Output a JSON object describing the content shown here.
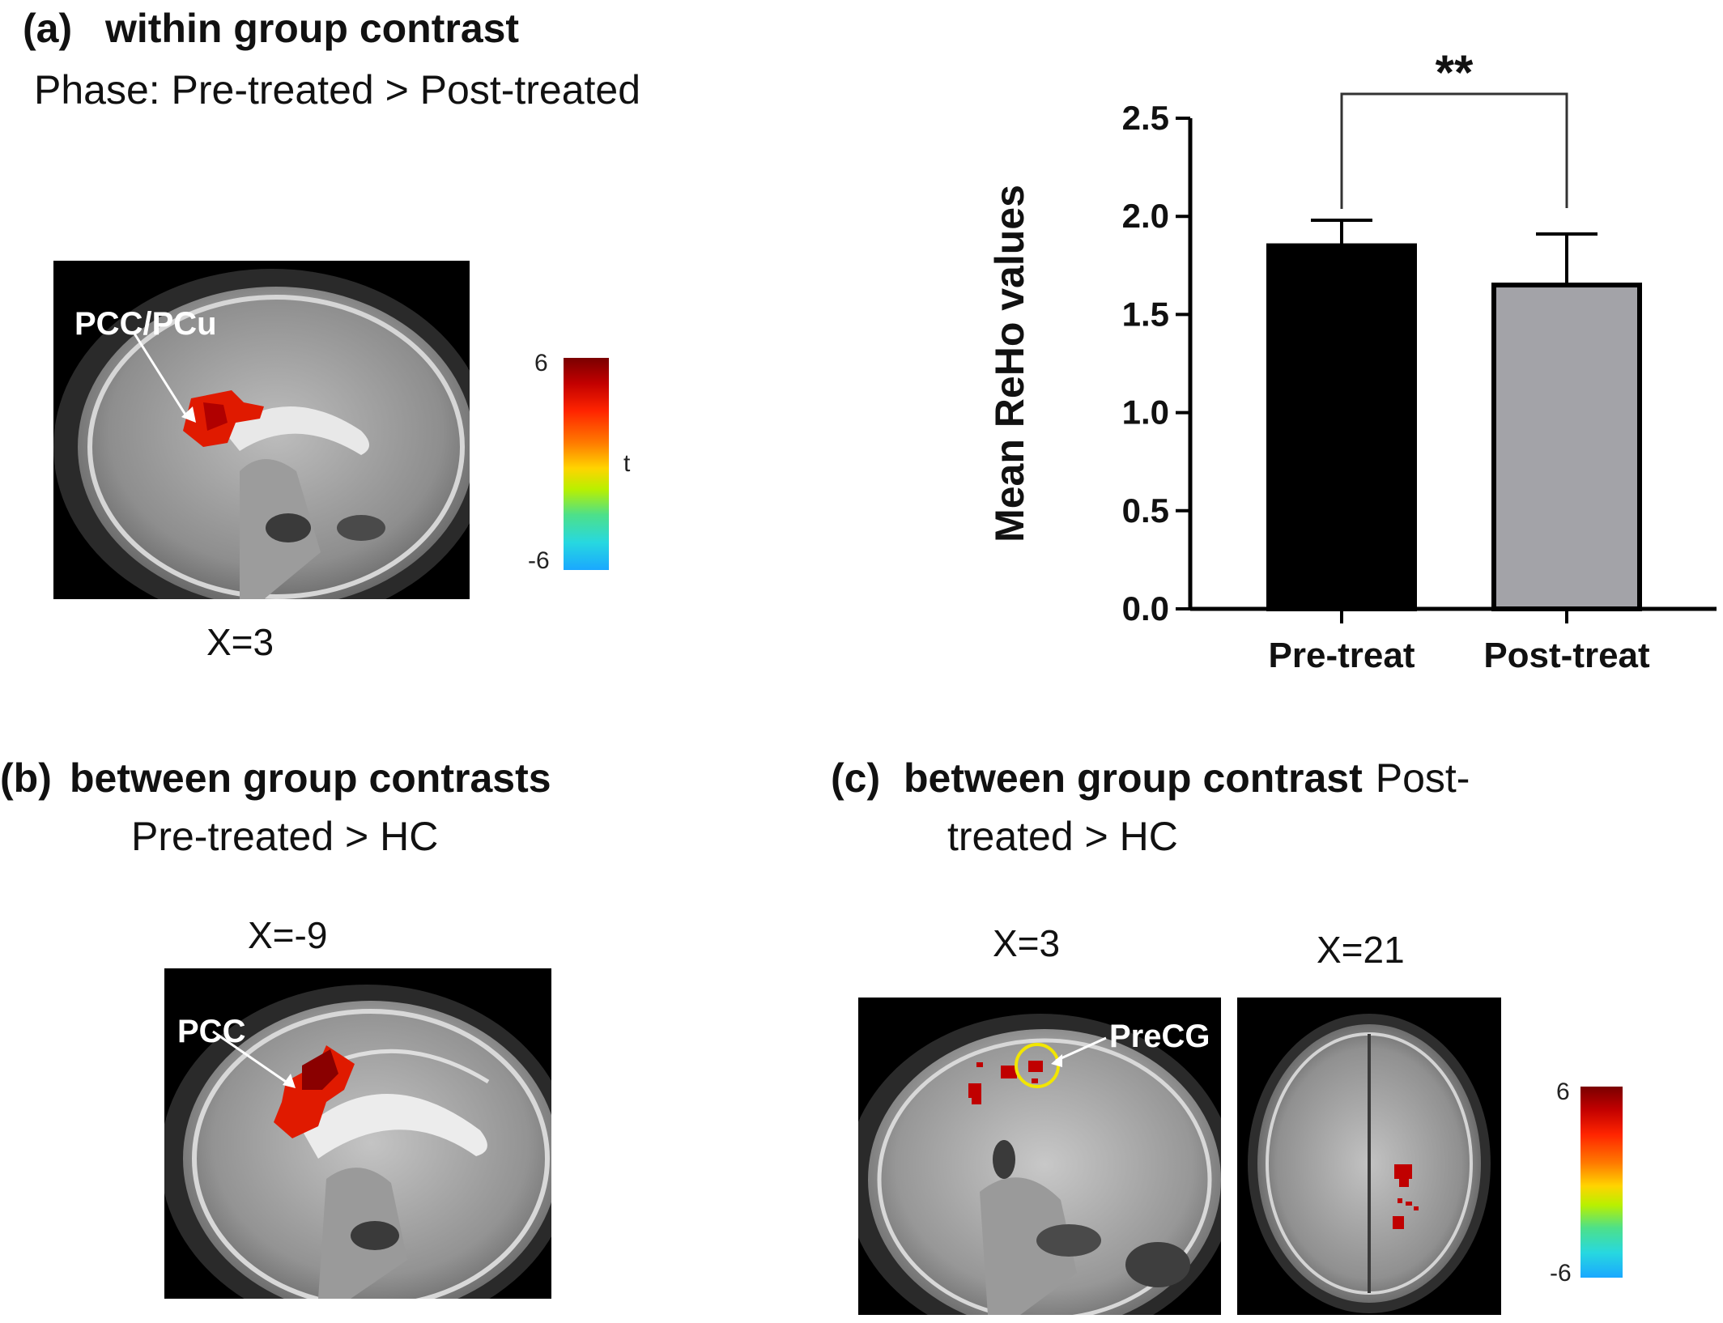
{
  "panel_a": {
    "label": "(a)",
    "title": "within group contrast",
    "subtitle": "Phase: Pre-treated > Post-treated",
    "region_label": "PCC/PCu",
    "coordinate": "X=3",
    "colorbar": {
      "max": "6",
      "min": "-6",
      "var": "t"
    }
  },
  "panel_b": {
    "label": "(b)",
    "title": "between group contrasts",
    "subtitle": "Pre-treated > HC",
    "coordinate": "X=-9",
    "region_label": "PCC"
  },
  "panel_c": {
    "label": "(c)",
    "title": "between group contrast",
    "title_tail": "Post-",
    "subtitle": "treated > HC",
    "coordinate_1": "X=3",
    "coordinate_2": "X=21",
    "region_label": "PreCG",
    "colorbar": {
      "max": "6",
      "min": "-6"
    }
  },
  "colors": {
    "activation": "#e01a00",
    "activation_dark": "#8a0000",
    "circle": "#f2e600",
    "pre_bar": "#000000",
    "post_bar": "#a3a3a8"
  },
  "chart_data": {
    "type": "bar",
    "categories": [
      "Pre-treat",
      "Post-treat"
    ],
    "values": [
      1.85,
      1.65
    ],
    "errors": [
      0.13,
      0.26
    ],
    "ylabel": "Mean ReHo values",
    "ylim": [
      0,
      2.5
    ],
    "yticks": [
      "0.0",
      "0.5",
      "1.0",
      "1.5",
      "2.0",
      "2.5"
    ],
    "significance": "**",
    "grid": false
  }
}
